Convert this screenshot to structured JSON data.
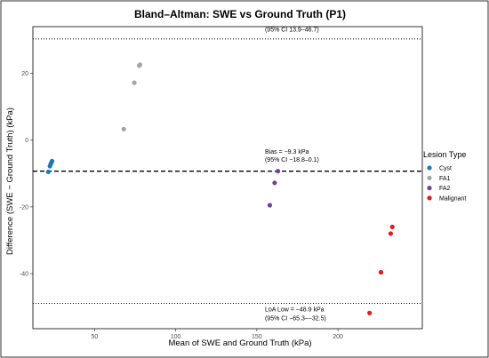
{
  "chart_data": {
    "type": "scatter",
    "title": "Bland–Altman: SWE vs Ground Truth (P1)",
    "xlabel": "Mean of SWE and Ground Truth (kPa)",
    "ylabel": "Difference (SWE − Ground Truth) (kPa)",
    "xlim": [
      12,
      252
    ],
    "ylim": [
      -56.5,
      34
    ],
    "xticks": [
      50,
      100,
      150,
      200
    ],
    "yticks": [
      -40,
      -20,
      0,
      20
    ],
    "grid": false,
    "legend": {
      "title": "Lesion Type",
      "placement": "right",
      "entries": [
        {
          "name": "Cyst",
          "color": "#2178b4"
        },
        {
          "name": "FA1",
          "color": "#a5a5a5"
        },
        {
          "name": "FA2",
          "color": "#7440a0"
        },
        {
          "name": "Malignant",
          "color": "#e41a1c"
        }
      ]
    },
    "series": [
      {
        "name": "Cyst",
        "color": "#2178b4",
        "points": [
          [
            21.5,
            -9.5
          ],
          [
            22.5,
            -7.8
          ],
          [
            23,
            -7.2
          ],
          [
            23.3,
            -6.8
          ],
          [
            23.8,
            -6.3
          ]
        ]
      },
      {
        "name": "FA1",
        "color": "#a5a5a5",
        "points": [
          [
            68,
            3.3
          ],
          [
            74.5,
            17.2
          ],
          [
            77.5,
            22.3
          ],
          [
            78,
            22.6
          ]
        ]
      },
      {
        "name": "FA2",
        "color": "#7440a0",
        "points": [
          [
            158,
            -19.5
          ],
          [
            161,
            -12.8
          ],
          [
            163,
            -9.3
          ]
        ]
      },
      {
        "name": "Malignant",
        "color": "#e41a1c",
        "points": [
          [
            219.5,
            -51.8
          ],
          [
            226.5,
            -39.6
          ],
          [
            232.5,
            -28
          ],
          [
            233.5,
            -26
          ]
        ]
      }
    ],
    "reference_lines": [
      {
        "name": "upper-loa",
        "y": 30.3,
        "style": "dotted"
      },
      {
        "name": "bias",
        "y": -9.3,
        "style": "dashed"
      },
      {
        "name": "lower-loa",
        "y": -48.9,
        "style": "dotted"
      }
    ],
    "annotations": [
      {
        "name": "upper-loa-ci",
        "x": 155,
        "y": 32.5,
        "text": "(95% CI 13.9–46.7)"
      },
      {
        "name": "bias-label",
        "x": 155,
        "y": -4,
        "text": "Bias = −9.3 kPa"
      },
      {
        "name": "bias-ci",
        "x": 155,
        "y": -6.5,
        "text": "(95% CI −18.8–0.1)"
      },
      {
        "name": "lower-loa-label",
        "x": 155,
        "y": -51.3,
        "text": "LoA Low = −48.9 kPa"
      },
      {
        "name": "lower-loa-ci",
        "x": 155,
        "y": -54,
        "text": "(95% CI −65.3–−32.5)"
      }
    ]
  }
}
